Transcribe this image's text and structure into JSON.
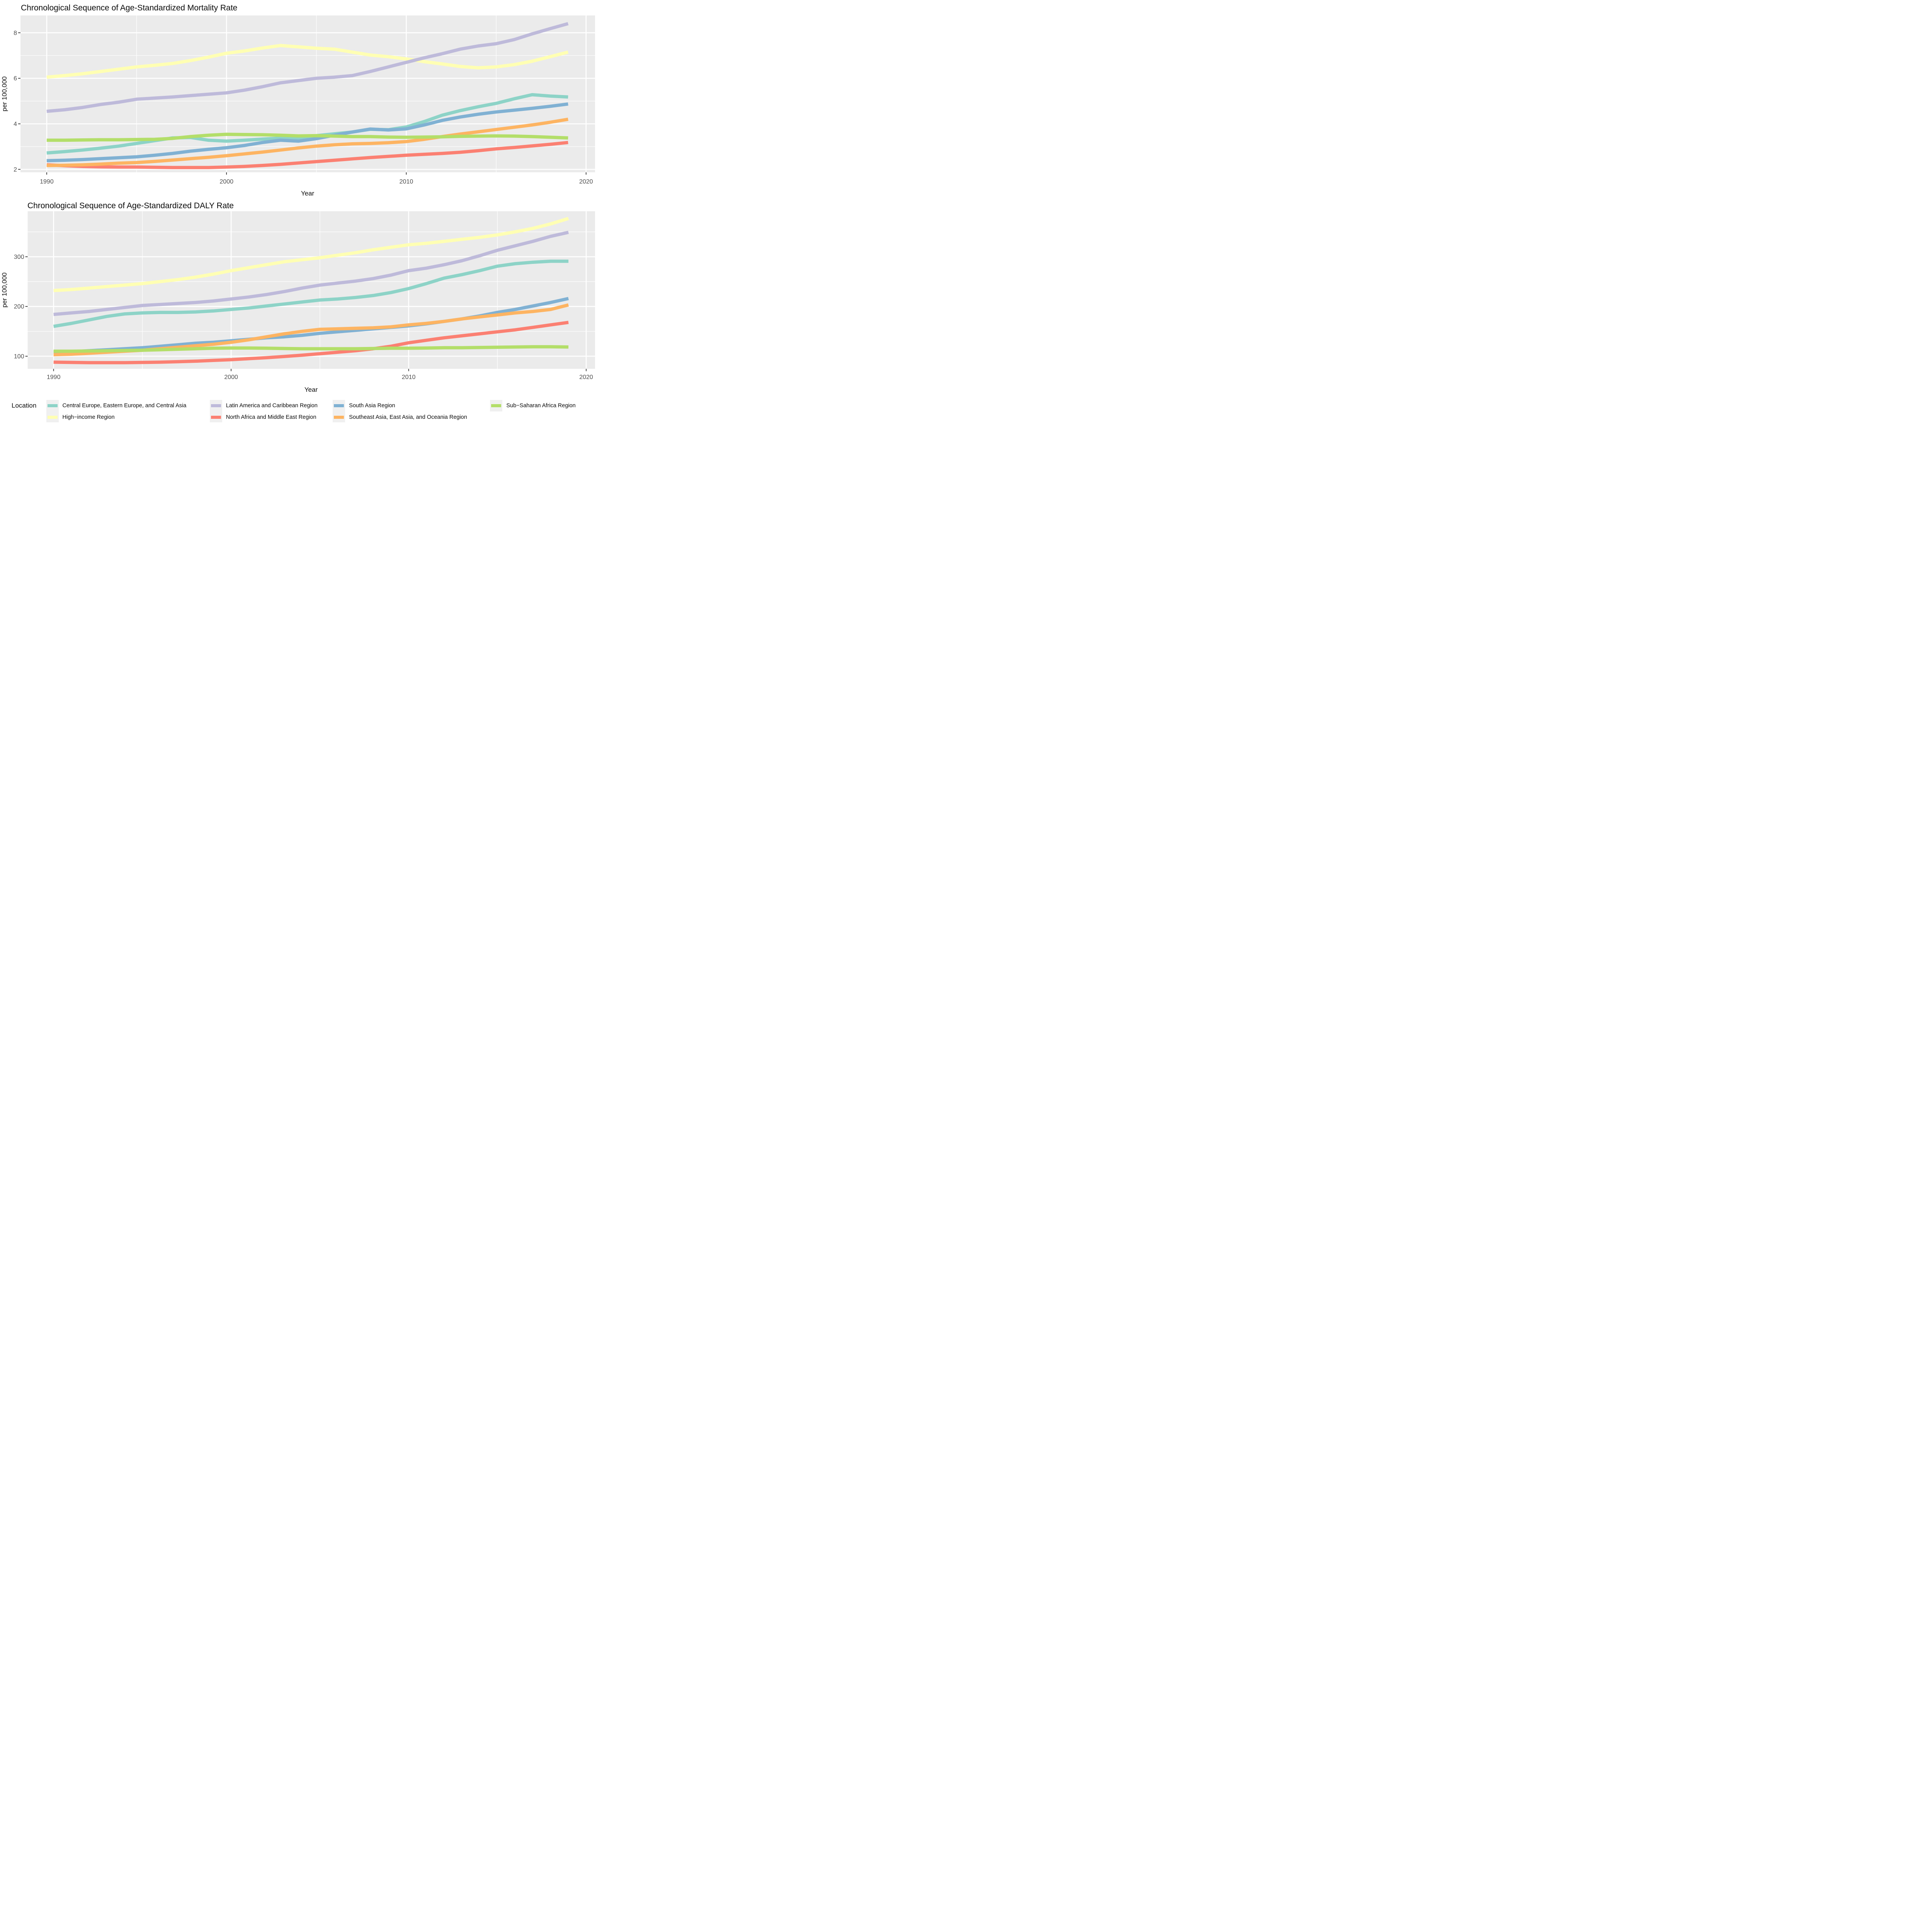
{
  "page": {
    "background": "#FFFFFF",
    "panel_color": "#EBEBEB",
    "gridline_color": "#FFFFFF",
    "tick_mark_color": "#333333",
    "tick_label_color": "#4D4D4D",
    "text_color": "#0A0A0A"
  },
  "chart_data": [
    {
      "type": "line",
      "id": "mortality",
      "title": "Chronological Sequence of Age-Standardized Mortality Rate",
      "xlabel": "Year",
      "ylabel": "per 100,000",
      "grid": true,
      "legend_position": "bottom",
      "x": [
        1990,
        1991,
        1992,
        1993,
        1994,
        1995,
        1996,
        1997,
        1998,
        1999,
        2000,
        2001,
        2002,
        2003,
        2004,
        2005,
        2006,
        2007,
        2008,
        2009,
        2010,
        2011,
        2012,
        2013,
        2014,
        2015,
        2016,
        2017,
        2018,
        2019
      ],
      "x_major_ticks": [
        1990,
        2000,
        2010,
        2020
      ],
      "x_minor_ticks": [
        1995,
        2005,
        2015
      ],
      "y_major_ticks": [
        2,
        4,
        6,
        8
      ],
      "y_minor_ticks": [
        3,
        5,
        7
      ],
      "xlim": [
        1988.54,
        2020.5
      ],
      "ylim": [
        1.87,
        8.76
      ],
      "series": [
        {
          "name": "Central Europe, Eastern Europe, and Central Asia",
          "color": "#8DD3C7",
          "values": [
            2.72,
            2.78,
            2.85,
            2.93,
            3.02,
            3.14,
            3.26,
            3.38,
            3.4,
            3.28,
            3.24,
            3.28,
            3.33,
            3.37,
            3.34,
            3.48,
            3.56,
            3.64,
            3.76,
            3.74,
            3.86,
            4.1,
            4.38,
            4.58,
            4.75,
            4.9,
            5.1,
            5.28,
            5.22,
            5.18
          ]
        },
        {
          "name": "High-income Region",
          "color": "#FFFFB3",
          "values": [
            6.05,
            6.12,
            6.2,
            6.3,
            6.4,
            6.5,
            6.57,
            6.65,
            6.78,
            6.93,
            7.1,
            7.2,
            7.33,
            7.44,
            7.38,
            7.32,
            7.28,
            7.15,
            7.02,
            6.95,
            6.85,
            6.73,
            6.63,
            6.52,
            6.46,
            6.5,
            6.6,
            6.75,
            6.95,
            7.15
          ]
        },
        {
          "name": "Latin America and Caribbean Region",
          "color": "#BEBADA",
          "values": [
            4.55,
            4.62,
            4.72,
            4.85,
            4.95,
            5.08,
            5.13,
            5.18,
            5.24,
            5.3,
            5.36,
            5.48,
            5.63,
            5.8,
            5.9,
            6.0,
            6.05,
            6.12,
            6.3,
            6.5,
            6.7,
            6.9,
            7.08,
            7.28,
            7.42,
            7.52,
            7.7,
            7.95,
            8.18,
            8.4
          ]
        },
        {
          "name": "North Africa and Middle East Region",
          "color": "#FB8072",
          "values": [
            2.2,
            2.16,
            2.13,
            2.11,
            2.1,
            2.1,
            2.09,
            2.08,
            2.08,
            2.08,
            2.1,
            2.13,
            2.17,
            2.22,
            2.28,
            2.34,
            2.4,
            2.46,
            2.52,
            2.57,
            2.62,
            2.66,
            2.7,
            2.75,
            2.82,
            2.9,
            2.96,
            3.03,
            3.1,
            3.18
          ]
        },
        {
          "name": "South Asia Region",
          "color": "#80B1D3",
          "values": [
            2.38,
            2.4,
            2.43,
            2.47,
            2.51,
            2.55,
            2.62,
            2.7,
            2.8,
            2.88,
            2.95,
            3.05,
            3.18,
            3.28,
            3.24,
            3.35,
            3.5,
            3.64,
            3.77,
            3.73,
            3.78,
            3.95,
            4.15,
            4.3,
            4.42,
            4.52,
            4.6,
            4.68,
            4.77,
            4.87
          ]
        },
        {
          "name": "Southeast Asia, East Asia, and Oceania Region",
          "color": "#FDB462",
          "values": [
            2.17,
            2.18,
            2.2,
            2.23,
            2.27,
            2.3,
            2.35,
            2.41,
            2.47,
            2.53,
            2.6,
            2.68,
            2.76,
            2.85,
            2.94,
            3.02,
            3.08,
            3.12,
            3.14,
            3.17,
            3.22,
            3.32,
            3.44,
            3.55,
            3.65,
            3.75,
            3.85,
            3.95,
            4.07,
            4.2
          ]
        },
        {
          "name": "Sub-Saharan Africa Region",
          "color": "#B3DE69",
          "values": [
            3.28,
            3.28,
            3.29,
            3.3,
            3.3,
            3.31,
            3.32,
            3.36,
            3.44,
            3.5,
            3.54,
            3.53,
            3.52,
            3.5,
            3.47,
            3.48,
            3.46,
            3.44,
            3.44,
            3.42,
            3.41,
            3.42,
            3.43,
            3.45,
            3.46,
            3.47,
            3.46,
            3.44,
            3.41,
            3.38
          ]
        }
      ]
    },
    {
      "type": "line",
      "id": "daly",
      "title": "Chronological Sequence of Age-Standardized DALY Rate",
      "xlabel": "Year",
      "ylabel": "per 100,000",
      "grid": true,
      "legend_position": "bottom",
      "x": [
        1990,
        1991,
        1992,
        1993,
        1994,
        1995,
        1996,
        1997,
        1998,
        1999,
        2000,
        2001,
        2002,
        2003,
        2004,
        2005,
        2006,
        2007,
        2008,
        2009,
        2010,
        2011,
        2012,
        2013,
        2014,
        2015,
        2016,
        2017,
        2018,
        2019
      ],
      "x_major_ticks": [
        1990,
        2000,
        2010,
        2020
      ],
      "x_minor_ticks": [
        1995,
        2005,
        2015
      ],
      "y_major_ticks": [
        100,
        200,
        300
      ],
      "y_minor_ticks": [
        150,
        250,
        350
      ],
      "xlim": [
        1988.54,
        2020.5
      ],
      "ylim": [
        74.6,
        391.6
      ],
      "series": [
        {
          "name": "Central Europe, Eastern Europe, and Central Asia",
          "color": "#8DD3C7",
          "values": [
            160,
            166,
            173,
            180,
            185,
            187,
            188,
            188,
            189,
            191,
            194,
            197,
            201,
            205,
            209,
            213,
            215,
            218,
            222,
            228,
            236,
            246,
            257,
            264,
            272,
            281,
            286,
            289,
            291,
            291
          ]
        },
        {
          "name": "High-income Region",
          "color": "#FFFFB3",
          "values": [
            232,
            234,
            237,
            240,
            243,
            246,
            250,
            254,
            259,
            265,
            272,
            278,
            284,
            290,
            294,
            298,
            303,
            308,
            314,
            319,
            324,
            327,
            331,
            335,
            339,
            344,
            350,
            357,
            366,
            377
          ]
        },
        {
          "name": "Latin America and Caribbean Region",
          "color": "#BEBADA",
          "values": [
            184,
            187,
            190,
            194,
            198,
            202,
            204,
            206,
            208,
            211,
            215,
            219,
            224,
            230,
            237,
            243,
            247,
            251,
            256,
            263,
            272,
            277,
            284,
            292,
            302,
            313,
            322,
            331,
            341,
            349
          ]
        },
        {
          "name": "North Africa and Middle East Region",
          "color": "#FB8072",
          "values": [
            88,
            87.5,
            87,
            87,
            87,
            87.5,
            88,
            89,
            90,
            91.5,
            93,
            95,
            97,
            99.5,
            102,
            105,
            108,
            111,
            115,
            120,
            127,
            132,
            137,
            141,
            145,
            149,
            153,
            158,
            163,
            168
          ]
        },
        {
          "name": "South Asia Region",
          "color": "#80B1D3",
          "values": [
            108,
            109,
            111,
            113,
            115,
            117,
            120,
            123,
            126,
            128,
            131,
            134,
            137,
            139,
            142,
            146,
            149,
            152,
            155,
            158,
            161,
            165,
            170,
            175,
            181,
            188,
            194,
            201,
            208,
            216
          ]
        },
        {
          "name": "Southeast Asia, East Asia, and Oceania Region",
          "color": "#FDB462",
          "values": [
            103,
            104,
            106,
            108,
            110,
            112,
            115,
            118,
            121,
            124,
            128,
            133,
            139,
            145,
            150,
            154,
            155,
            156,
            157,
            159,
            163,
            166,
            170,
            175,
            179,
            183,
            187,
            190,
            194,
            203
          ]
        },
        {
          "name": "Sub-Saharan Africa Region",
          "color": "#B3DE69",
          "values": [
            110,
            110,
            110.5,
            111,
            111.5,
            112,
            113,
            114,
            115,
            116,
            116.5,
            116.5,
            116,
            115.5,
            115,
            115,
            115,
            115,
            115.5,
            116,
            116,
            116.5,
            117,
            117,
            117.5,
            118,
            118.5,
            119,
            119,
            118.5
          ]
        }
      ]
    }
  ],
  "legend": {
    "title": "Location",
    "key_background": "#F0F0F0",
    "columns": [
      {
        "items": [
          {
            "label": "Central Europe, Eastern Europe, and Central Asia",
            "color": "#8DD3C7"
          },
          {
            "label": "High−income Region",
            "color": "#FFFFB3"
          }
        ]
      },
      {
        "items": [
          {
            "label": "Latin America and Caribbean Region",
            "color": "#BEBADA"
          },
          {
            "label": "North Africa and Middle East Region",
            "color": "#FB8072"
          }
        ]
      },
      {
        "items": [
          {
            "label": "South Asia Region",
            "color": "#80B1D3"
          },
          {
            "label": "Southeast Asia, East Asia, and Oceania Region",
            "color": "#FDB462"
          }
        ]
      },
      {
        "items": [
          {
            "label": "Sub−Saharan Africa Region",
            "color": "#B3DE69"
          }
        ]
      }
    ]
  }
}
